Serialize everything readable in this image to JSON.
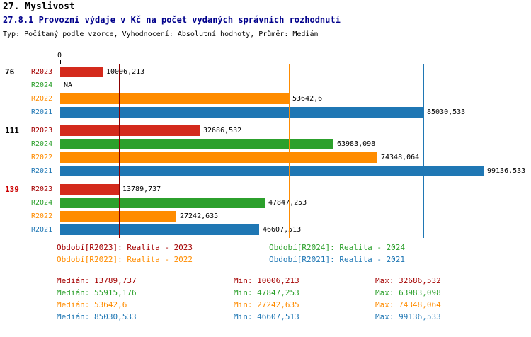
{
  "header": {
    "title": "27. Myslivost",
    "subtitle": "27.8.1 Provozní výdaje v Kč na počet vydaných správních rozhodnutí",
    "meta": "Typ: Počítaný podle vzorce, Vyhodnocení: Absolutní hodnoty, Průměr: Medián"
  },
  "chart_data": {
    "type": "bar",
    "orientation": "horizontal",
    "title": "27.8.1 Provozní výdaje v Kč na počet vydaných správních rozhodnutí",
    "value_axis": {
      "origin_label": "0",
      "xlim": [
        0,
        100000
      ],
      "grid": false
    },
    "series_colors": {
      "R2023": "#a40000",
      "R2024": "#2ca02c",
      "R2022": "#ff8c00",
      "R2021": "#1f77b4"
    },
    "bar_colors": {
      "R2023": "#d42a1c",
      "R2024": "#2ca02c",
      "R2022": "#ff8c00",
      "R2021": "#1f77b4"
    },
    "groups": [
      {
        "label": "76",
        "label_color": "#000000",
        "bars": [
          {
            "series": "R2023",
            "value": 10006.213,
            "display": "10006,213"
          },
          {
            "series": "R2024",
            "value": null,
            "display": "NA"
          },
          {
            "series": "R2022",
            "value": 53642.6,
            "display": "53642,6"
          },
          {
            "series": "R2021",
            "value": 85030.533,
            "display": "85030,533"
          }
        ]
      },
      {
        "label": "111",
        "label_color": "#000000",
        "bars": [
          {
            "series": "R2023",
            "value": 32686.532,
            "display": "32686,532"
          },
          {
            "series": "R2024",
            "value": 63983.098,
            "display": "63983,098"
          },
          {
            "series": "R2022",
            "value": 74348.064,
            "display": "74348,064"
          },
          {
            "series": "R2021",
            "value": 99136.533,
            "display": "99136,533"
          }
        ]
      },
      {
        "label": "139",
        "label_color": "#cc0000",
        "bars": [
          {
            "series": "R2023",
            "value": 13789.737,
            "display": "13789,737"
          },
          {
            "series": "R2024",
            "value": 47847.253,
            "display": "47847,253"
          },
          {
            "series": "R2022",
            "value": 27242.635,
            "display": "27242,635"
          },
          {
            "series": "R2021",
            "value": 46607.513,
            "display": "46607,513"
          }
        ]
      }
    ],
    "median_lines": [
      {
        "series": "R2023",
        "value": 13789.737,
        "color": "#8b0000"
      },
      {
        "series": "R2022",
        "value": 53642.6,
        "color": "#ff8c00"
      },
      {
        "series": "R2024",
        "value": 55915.176,
        "color": "#2ca02c"
      },
      {
        "series": "R2021",
        "value": 85030.533,
        "color": "#1f77b4"
      }
    ],
    "legend_position": "bottom"
  },
  "legend": {
    "items": [
      {
        "label": "Období[R2023]: Realita - 2023",
        "color": "#a40000"
      },
      {
        "label": "Období[R2024]: Realita - 2024",
        "color": "#2ca02c"
      },
      {
        "label": "Období[R2022]: Realita - 2022",
        "color": "#ff8c00"
      },
      {
        "label": "Období[R2021]: Realita - 2021",
        "color": "#1f77b4"
      }
    ]
  },
  "stats": {
    "rows": [
      {
        "color": "#a40000",
        "median": "Medián: 13789,737",
        "min": "Min: 10006,213",
        "max": "Max: 32686,532"
      },
      {
        "color": "#2ca02c",
        "median": "Medián: 55915,176",
        "min": "Min: 47847,253",
        "max": "Max: 63983,098"
      },
      {
        "color": "#ff8c00",
        "median": "Medián: 53642,6",
        "min": "Min: 27242,635",
        "max": "Max: 74348,064"
      },
      {
        "color": "#1f77b4",
        "median": "Medián: 85030,533",
        "min": "Min: 46607,513",
        "max": "Max: 99136,533"
      }
    ]
  }
}
